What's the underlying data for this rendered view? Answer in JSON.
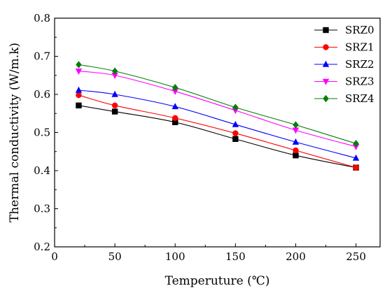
{
  "chart_data": {
    "type": "line",
    "xlabel": "Temperuture (℃)",
    "ylabel": "Thermal conductivity (W/m.k)",
    "xlim": [
      0,
      270
    ],
    "ylim": [
      0.2,
      0.8
    ],
    "xticks": [
      0,
      50,
      100,
      150,
      200,
      250
    ],
    "yticks": [
      0.2,
      0.3,
      0.4,
      0.5,
      0.6,
      0.7,
      0.8
    ],
    "x": [
      20,
      50,
      100,
      150,
      200,
      250
    ],
    "grid": false,
    "legend_position": "top-right",
    "series": [
      {
        "name": "SRZ0",
        "color": "#000000",
        "marker": "square",
        "values": [
          0.571,
          0.555,
          0.527,
          0.483,
          0.44,
          0.408
        ]
      },
      {
        "name": "SRZ1",
        "color": "#ff0000",
        "marker": "circle",
        "values": [
          0.598,
          0.571,
          0.538,
          0.498,
          0.453,
          0.408
        ]
      },
      {
        "name": "SRZ2",
        "color": "#0000ff",
        "marker": "triangle-up",
        "values": [
          0.611,
          0.6,
          0.568,
          0.521,
          0.475,
          0.433
        ]
      },
      {
        "name": "SRZ3",
        "color": "#ff00ff",
        "marker": "triangle-down",
        "values": [
          0.661,
          0.65,
          0.608,
          0.558,
          0.506,
          0.463
        ]
      },
      {
        "name": "SRZ4",
        "color": "#008000",
        "marker": "diamond",
        "values": [
          0.678,
          0.661,
          0.618,
          0.566,
          0.52,
          0.471
        ]
      }
    ]
  }
}
